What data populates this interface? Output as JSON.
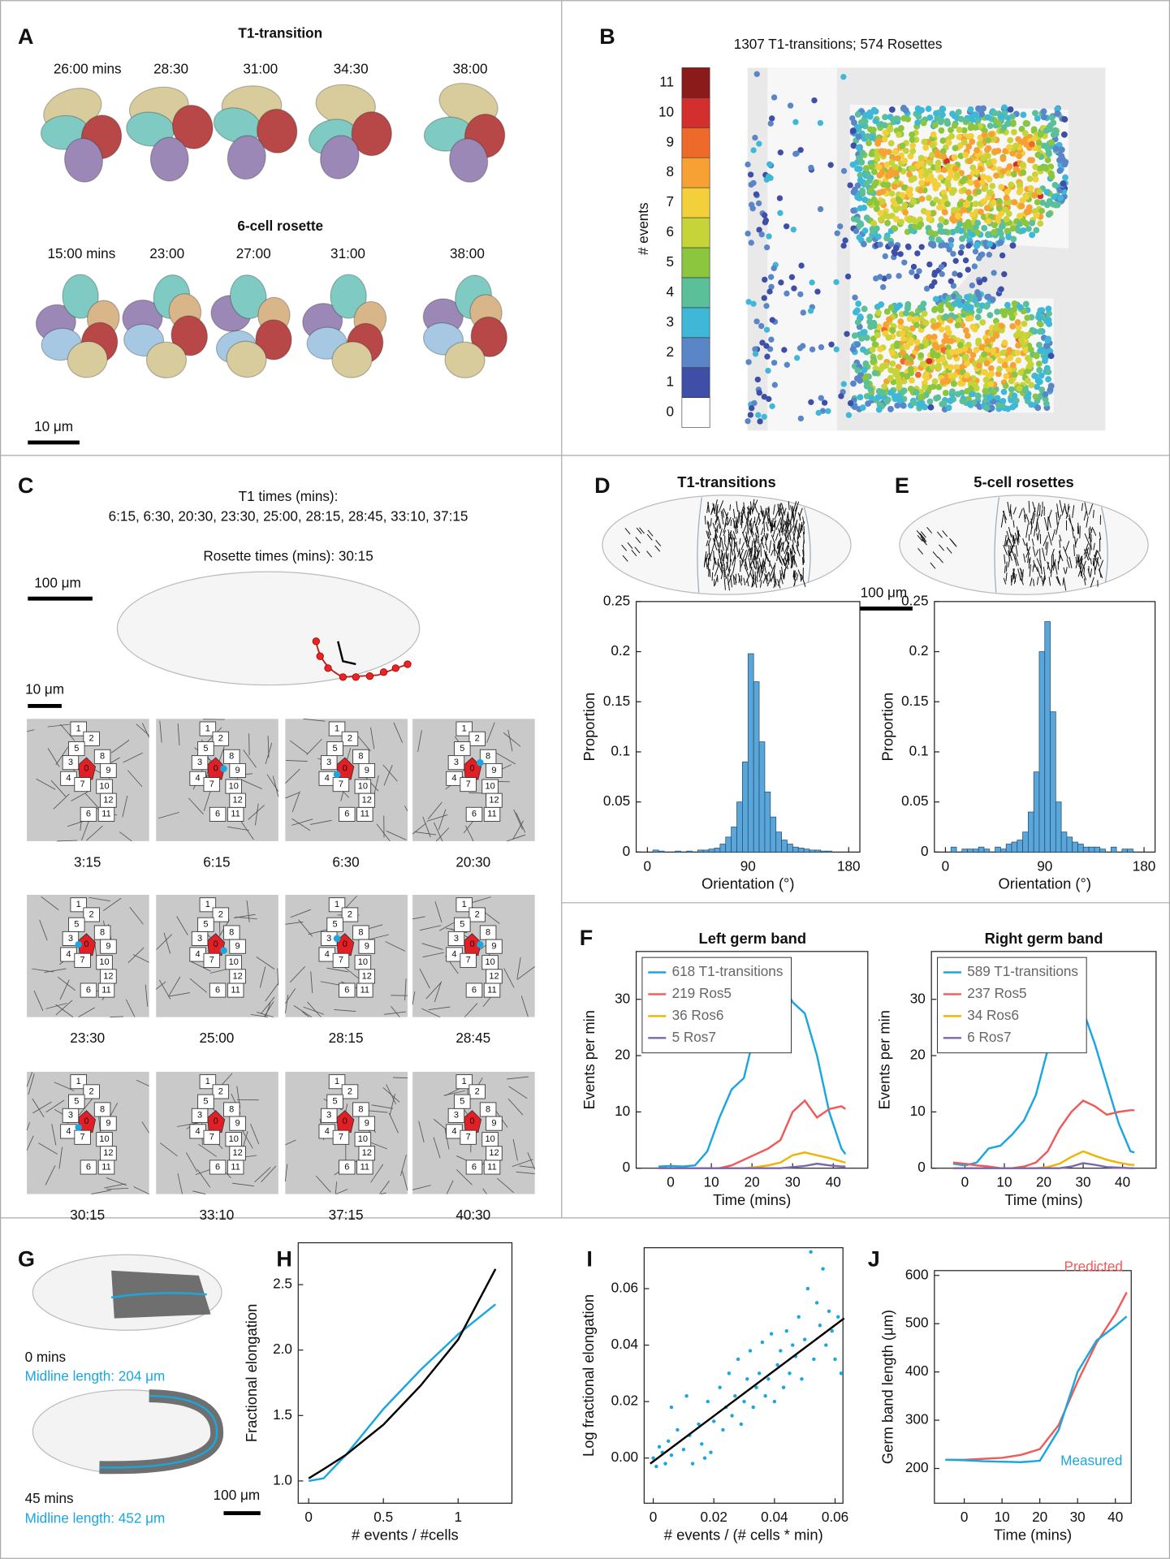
{
  "labels": [
    "A",
    "B",
    "C",
    "D",
    "E",
    "F",
    "G",
    "H",
    "I",
    "J"
  ],
  "A": {
    "title_top": "T1-transition",
    "times_top": [
      "26:00 mins",
      "28:30",
      "31:00",
      "34:30",
      "38:00"
    ],
    "title_bottom": "6-cell rosette",
    "times_bottom": [
      "15:00 mins",
      "23:00",
      "27:00",
      "31:00",
      "38:00"
    ],
    "scale": "10 μm"
  },
  "B": {
    "title": "1307 T1-transitions; 574 Rosettes",
    "colorbar": {
      "label": "# events",
      "ticks": [
        0,
        1,
        2,
        3,
        4,
        5,
        6,
        7,
        8,
        9,
        10,
        11
      ],
      "colors": [
        "#ffffff",
        "#3f4fa8",
        "#5a86c8",
        "#3fb8d8",
        "#5bbf9a",
        "#8cc63f",
        "#c6d43a",
        "#f2cf3b",
        "#f7a135",
        "#ee6a2a",
        "#d32f2f",
        "#8b1a1a"
      ]
    }
  },
  "C": {
    "t1_heading": "T1 times (mins):",
    "t1_times": "6:15, 6:30, 20:30, 23:30, 25:00, 28:15, 28:45, 33:10, 37:15",
    "rosette_times": "Rosette times (mins): 30:15",
    "scale_large": "100 μm",
    "scale_small": "10 μm",
    "cell_ids": [
      0,
      1,
      2,
      3,
      4,
      5,
      6,
      7,
      8,
      9,
      10,
      11,
      12
    ],
    "frames": [
      "3:15",
      "6:15",
      "6:30",
      "20:30",
      "23:30",
      "25:00",
      "28:15",
      "28:45",
      "30:15",
      "33:10",
      "37:15",
      "40:30"
    ]
  },
  "DE": {
    "scale": "100 μm"
  },
  "G": {
    "time_0": "0 mins",
    "length_0": "Midline length: 204 μm",
    "time_45": "45 mins",
    "length_45": "Midline length: 452 μm",
    "scale": "100 μm"
  },
  "chart_data": [
    {
      "type": "histogram",
      "title": "T1-transitions",
      "xlabel": "Orientation (°)",
      "ylabel": "Proportion",
      "bins": [
        0,
        5,
        10,
        15,
        20,
        25,
        30,
        35,
        40,
        45,
        50,
        55,
        60,
        65,
        70,
        75,
        80,
        85,
        90,
        95,
        100,
        105,
        110,
        115,
        120,
        125,
        130,
        135,
        140,
        145,
        150,
        155,
        160,
        165,
        170,
        175,
        180
      ],
      "values": [
        0,
        0.002,
        0.001,
        0,
        0,
        0.001,
        0,
        0.001,
        0,
        0.002,
        0.002,
        0.003,
        0.004,
        0.008,
        0.015,
        0.025,
        0.05,
        0.09,
        0.198,
        0.17,
        0.11,
        0.06,
        0.035,
        0.02,
        0.012,
        0.008,
        0.005,
        0.004,
        0.003,
        0.002,
        0.002,
        0.001,
        0.001,
        0,
        0,
        0
      ],
      "color": "#5ba6d8",
      "edgecolor": "#1f4e79",
      "xlim": [
        -10,
        190
      ],
      "xticks": [
        0,
        90,
        180
      ],
      "ylim": [
        0,
        0.25
      ],
      "yticks": [
        0,
        0.05,
        0.1,
        0.15,
        0.2,
        0.25
      ]
    },
    {
      "type": "histogram",
      "title": "5-cell rosettes",
      "xlabel": "Orientation (°)",
      "ylabel": "Proportion",
      "bins": [
        0,
        5,
        10,
        15,
        20,
        25,
        30,
        35,
        40,
        45,
        50,
        55,
        60,
        65,
        70,
        75,
        80,
        85,
        90,
        95,
        100,
        105,
        110,
        115,
        120,
        125,
        130,
        135,
        140,
        145,
        150,
        155,
        160,
        165,
        170,
        175,
        180
      ],
      "values": [
        0,
        0.005,
        0,
        0.003,
        0.003,
        0.003,
        0.005,
        0.003,
        0,
        0.005,
        0.003,
        0.008,
        0.01,
        0.012,
        0.02,
        0.04,
        0.08,
        0.2,
        0.23,
        0.14,
        0.05,
        0.02,
        0.015,
        0.01,
        0.008,
        0.005,
        0.005,
        0.005,
        0.003,
        0,
        0.005,
        0,
        0.003,
        0.003,
        0,
        0
      ],
      "color": "#5ba6d8",
      "edgecolor": "#1f4e79",
      "xlim": [
        -10,
        190
      ],
      "xticks": [
        0,
        90,
        180
      ],
      "ylim": [
        0,
        0.25
      ],
      "yticks": [
        0,
        0.05,
        0.1,
        0.15,
        0.2,
        0.25
      ]
    },
    {
      "type": "line",
      "title": "Left germ band",
      "xlabel": "Time (mins)",
      "ylabel": "Events per min",
      "x": [
        -3,
        0,
        3,
        6,
        9,
        12,
        15,
        18,
        21,
        24,
        27,
        30,
        33,
        36,
        39,
        42,
        43
      ],
      "series": [
        {
          "name": "618 T1-transitions",
          "color": "#1aa7e0",
          "values": [
            0.3,
            0.4,
            0.3,
            0.5,
            3,
            9,
            14,
            16,
            25,
            32,
            33.5,
            29.5,
            27.5,
            20,
            10,
            3.5,
            2.5
          ]
        },
        {
          "name": "219 Ros5",
          "color": "#f05a5a",
          "values": [
            0,
            0,
            0,
            0,
            0,
            0,
            0.5,
            1.5,
            2.5,
            3.5,
            5,
            10,
            12,
            9,
            10.5,
            11,
            10.5
          ]
        },
        {
          "name": "36 Ros6",
          "color": "#f0b400",
          "values": [
            0,
            0,
            0,
            0,
            0,
            0,
            0,
            0,
            0.2,
            0.5,
            1,
            2.3,
            2.8,
            2.3,
            1.8,
            1.2,
            1
          ]
        },
        {
          "name": "5 Ros7",
          "color": "#7b68a8",
          "values": [
            0,
            0,
            0,
            0,
            0,
            0,
            0,
            0,
            0,
            0,
            0,
            0.2,
            0.4,
            0.8,
            0.5,
            0.3,
            0.3
          ]
        }
      ],
      "legend": "upper left",
      "xlim": [
        -8.5,
        48.5
      ],
      "xticks": [
        0,
        10,
        20,
        30,
        40
      ],
      "ylim": [
        0,
        38.5
      ],
      "yticks": [
        0,
        10,
        20,
        30
      ]
    },
    {
      "type": "line",
      "title": "Right germ band",
      "xlabel": "Time (mins)",
      "ylabel": "Events per min",
      "x": [
        -3,
        0,
        3,
        6,
        9,
        12,
        15,
        18,
        21,
        24,
        27,
        30,
        33,
        36,
        39,
        42,
        43
      ],
      "series": [
        {
          "name": "589 T1-transitions",
          "color": "#1aa7e0",
          "values": [
            0.8,
            0.5,
            1,
            3.5,
            4,
            6,
            8.5,
            13,
            21,
            29,
            31.5,
            28,
            22,
            15,
            8,
            3,
            2.8
          ]
        },
        {
          "name": "237 Ros5",
          "color": "#f05a5a",
          "values": [
            1,
            0.8,
            0.5,
            0.3,
            0,
            0,
            0.3,
            1,
            3,
            7,
            10,
            12,
            11,
            9.5,
            10,
            10.3,
            10.3
          ]
        },
        {
          "name": "34 Ros6",
          "color": "#f0b400",
          "values": [
            0,
            0,
            0,
            0,
            0,
            0,
            0,
            0,
            0.2,
            0.8,
            2,
            3,
            2.2,
            1.5,
            1,
            0.6,
            0.6
          ]
        },
        {
          "name": "6 Ros7",
          "color": "#7b68a8",
          "values": [
            0,
            0,
            0,
            0,
            0,
            0,
            0,
            0,
            0,
            0,
            0.3,
            0.9,
            0.6,
            0.2,
            0.1,
            0,
            0
          ]
        }
      ],
      "legend": "upper left",
      "xlim": [
        -8.5,
        48.5
      ],
      "xticks": [
        0,
        10,
        20,
        30,
        40
      ],
      "ylim": [
        0,
        38.5
      ],
      "yticks": [
        0,
        10,
        20,
        30
      ]
    },
    {
      "type": "line",
      "xlabel": "# events / #cells",
      "ylabel": "Fractional elongation",
      "x": [
        0,
        0.1,
        0.25,
        0.5,
        0.75,
        1,
        1.25
      ],
      "series": [
        {
          "color": "#1aa7e0",
          "values": [
            1.0,
            1.02,
            1.2,
            1.55,
            1.85,
            2.12,
            2.35
          ]
        },
        {
          "color": "#000000",
          "values": [
            1.02,
            1.09,
            1.2,
            1.43,
            1.73,
            2.08,
            2.62
          ]
        }
      ],
      "xlim": [
        -0.07,
        1.36
      ],
      "xticks": [
        0,
        0.5,
        1
      ],
      "ylim": [
        0.83,
        2.82
      ],
      "yticks": [
        {
          "value": 1,
          "label": "1.0"
        },
        1.5,
        {
          "value": 2,
          "label": "2.0"
        },
        2.5
      ]
    },
    {
      "type": "scatter",
      "xlabel": "# events / (# cells * min)",
      "ylabel": "Log fractional elongation",
      "points": {
        "color": "#1aa7e0",
        "x": [
          0,
          0.001,
          0.002,
          0.003,
          0.004,
          0.005,
          0.006,
          0.008,
          0.01,
          0.012,
          0.013,
          0.015,
          0.016,
          0.018,
          0.019,
          0.02,
          0.022,
          0.023,
          0.024,
          0.025,
          0.026,
          0.027,
          0.028,
          0.029,
          0.03,
          0.031,
          0.032,
          0.033,
          0.034,
          0.035,
          0.036,
          0.037,
          0.038,
          0.039,
          0.04,
          0.041,
          0.042,
          0.043,
          0.044,
          0.045,
          0.046,
          0.047,
          0.048,
          0.049,
          0.05,
          0.051,
          0.052,
          0.053,
          0.054,
          0.055,
          0.056,
          0.057,
          0.058,
          0.059,
          0.06,
          0.061,
          0.062,
          0.006,
          0.011,
          0.017
        ],
        "values": [
          0,
          -0.003,
          0.004,
          0.002,
          -0.002,
          0.006,
          0.001,
          0.01,
          0.003,
          0.008,
          -0.002,
          0.012,
          0.005,
          0.02,
          0.002,
          0.013,
          0.025,
          0.01,
          0.018,
          0.03,
          0.015,
          0.022,
          0.035,
          0.012,
          0.02,
          0.028,
          0.038,
          0.018,
          0.025,
          0.03,
          0.041,
          0.022,
          0.028,
          0.044,
          0.02,
          0.033,
          0.038,
          0.025,
          0.045,
          0.03,
          0.04,
          0.036,
          0.05,
          0.028,
          0.042,
          0.06,
          0.073,
          0.035,
          0.055,
          0.047,
          0.067,
          0.04,
          0.052,
          0.045,
          0.035,
          0.05,
          0.03,
          0.018,
          0.022,
          0
        ]
      },
      "fit": {
        "color": "#000000",
        "x": [
          -0.001,
          0.063
        ],
        "values": [
          -0.002,
          0.0495
        ]
      },
      "xlim": [
        -0.003,
        0.0626
      ],
      "xticks": [
        0,
        0.02,
        0.04,
        0.06
      ],
      "ylim": [
        -0.016,
        0.0745
      ],
      "yticks": [
        {
          "value": 0,
          "label": "0.00"
        },
        {
          "value": 0.02,
          "label": "0.02"
        },
        {
          "value": 0.04,
          "label": "0.04"
        },
        {
          "value": 0.06,
          "label": "0.06"
        }
      ]
    },
    {
      "type": "line",
      "xlabel": "Time (mins)",
      "ylabel": "Germ band length (μm)",
      "x": [
        -5,
        0,
        5,
        10,
        15,
        20,
        25,
        30,
        35,
        40,
        43
      ],
      "series": [
        {
          "name": "Predicted",
          "color": "#f05a5a",
          "values": [
            218,
            218,
            220,
            222,
            228,
            240,
            290,
            380,
            460,
            520,
            565
          ]
        },
        {
          "name": "Measured",
          "color": "#1aa7e0",
          "values": [
            218,
            217,
            215,
            214,
            213,
            216,
            280,
            400,
            465,
            495,
            515
          ]
        }
      ],
      "legend": "inline",
      "xlim": [
        -7.9,
        44.2
      ],
      "xticks": [
        0,
        10,
        20,
        30,
        40
      ],
      "ylim": [
        128,
        610
      ],
      "yticks": [
        200,
        300,
        400,
        500,
        600
      ]
    }
  ]
}
